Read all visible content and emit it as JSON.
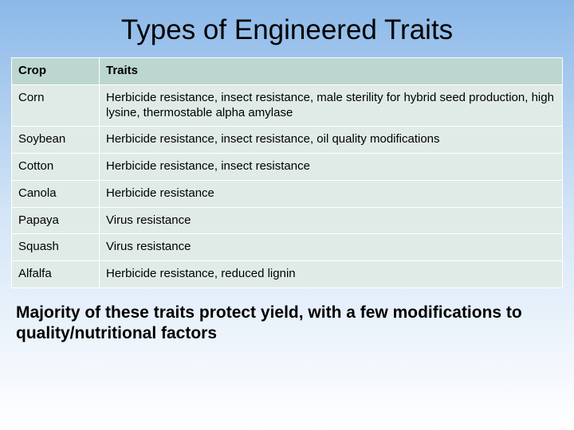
{
  "title": "Types of Engineered Traits",
  "table": {
    "header_bg": "#bcd6d0",
    "cell_bg": "#e0ebe8",
    "border_color": "#ffffff",
    "columns": [
      "Crop",
      "Traits"
    ],
    "rows": [
      {
        "crop": "Corn",
        "traits": "Herbicide resistance, insect resistance, male sterility for hybrid seed production, high lysine, thermostable alpha amylase"
      },
      {
        "crop": "Soybean",
        "traits": "Herbicide resistance, insect resistance, oil quality modifications"
      },
      {
        "crop": "Cotton",
        "traits": "Herbicide resistance, insect resistance"
      },
      {
        "crop": "Canola",
        "traits": "Herbicide resistance"
      },
      {
        "crop": "Papaya",
        "traits": "Virus resistance"
      },
      {
        "crop": "Squash",
        "traits": "Virus resistance"
      },
      {
        "crop": "Alfalfa",
        "traits": "Herbicide resistance, reduced lignin"
      }
    ]
  },
  "footer": "Majority of these traits protect yield, with a few modifications to quality/nutritional factors"
}
